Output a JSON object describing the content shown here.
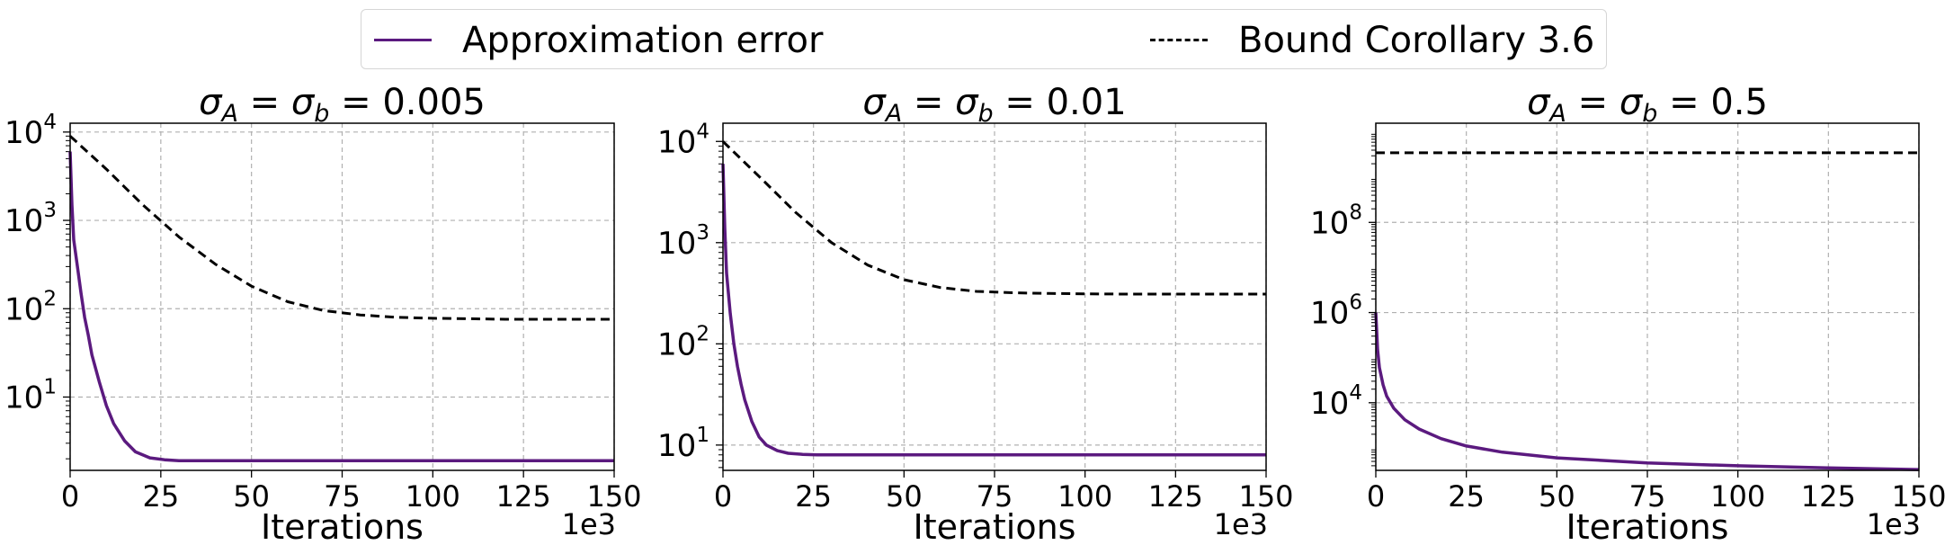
{
  "legend": {
    "error_label": "Approximation error",
    "bound_label": "Bound Corollary 3.6",
    "error_color": "#5b1a7f",
    "bound_color": "#000000",
    "bound_style": "dashed"
  },
  "chart_data": [
    {
      "type": "line",
      "title": "σ_A = σ_b = 0.005",
      "title_parts": {
        "s1": "σ",
        "sub1": "A",
        "eq1": " = ",
        "s2": "σ",
        "sub2": "b",
        "eq2": " = ",
        "value": "0.005"
      },
      "xlabel": "Iterations",
      "x_multiplier": "1e3",
      "xlim": [
        0,
        150
      ],
      "ylim_log10": [
        0.17,
        4.1
      ],
      "y_scale": "log",
      "grid": true,
      "xticks": [
        "0",
        "25",
        "50",
        "75",
        "100",
        "125",
        "150"
      ],
      "yticks": [
        {
          "base": "10",
          "exp": "1"
        },
        {
          "base": "10",
          "exp": "2"
        },
        {
          "base": "10",
          "exp": "3"
        },
        {
          "base": "10",
          "exp": "4"
        }
      ],
      "series": [
        {
          "name": "Approximation error",
          "style": "solid",
          "color": "#5b1a7f",
          "x": [
            0,
            0.5,
            1,
            2,
            3,
            4,
            5,
            6,
            8,
            10,
            12,
            15,
            18,
            22,
            26,
            30,
            40,
            60,
            80,
            100,
            120,
            150
          ],
          "y": [
            6000,
            1500,
            600,
            300,
            150,
            80,
            50,
            30,
            15,
            8,
            5,
            3.2,
            2.4,
            2.05,
            1.95,
            1.9,
            1.9,
            1.9,
            1.9,
            1.9,
            1.9,
            1.9
          ]
        },
        {
          "name": "Bound Corollary 3.6",
          "style": "dashed",
          "color": "#000000",
          "x": [
            0,
            10,
            20,
            30,
            40,
            50,
            60,
            70,
            80,
            90,
            100,
            110,
            120,
            130,
            140,
            150
          ],
          "y": [
            9000,
            3800,
            1500,
            650,
            320,
            180,
            120,
            95,
            85,
            80,
            78,
            77,
            76,
            76,
            76,
            76
          ]
        }
      ]
    },
    {
      "type": "line",
      "title": "σ_A = σ_b = 0.01",
      "title_parts": {
        "s1": "σ",
        "sub1": "A",
        "eq1": " = ",
        "s2": "σ",
        "sub2": "b",
        "eq2": " = ",
        "value": "0.01"
      },
      "xlabel": "Iterations",
      "x_multiplier": "1e3",
      "xlim": [
        0,
        150
      ],
      "ylim_log10": [
        0.75,
        4.18
      ],
      "y_scale": "log",
      "grid": true,
      "xticks": [
        "0",
        "25",
        "50",
        "75",
        "100",
        "125",
        "150"
      ],
      "yticks": [
        {
          "base": "10",
          "exp": "1"
        },
        {
          "base": "10",
          "exp": "2"
        },
        {
          "base": "10",
          "exp": "3"
        },
        {
          "base": "10",
          "exp": "4"
        }
      ],
      "series": [
        {
          "name": "Approximation error",
          "style": "solid",
          "color": "#5b1a7f",
          "x": [
            0,
            0.5,
            1,
            2,
            3,
            4,
            5,
            6,
            8,
            10,
            12,
            15,
            18,
            22,
            26,
            30,
            40,
            60,
            80,
            100,
            120,
            150
          ],
          "y": [
            6000,
            1400,
            500,
            200,
            100,
            60,
            40,
            28,
            17,
            12,
            10,
            8.8,
            8.3,
            8.1,
            8.0,
            8.0,
            8.0,
            8.0,
            8.0,
            8.0,
            8.0,
            8.0
          ]
        },
        {
          "name": "Bound Corollary 3.6",
          "style": "dashed",
          "color": "#000000",
          "x": [
            0,
            10,
            20,
            30,
            40,
            50,
            60,
            70,
            80,
            90,
            100,
            110,
            120,
            130,
            140,
            150
          ],
          "y": [
            10000,
            4500,
            2000,
            1000,
            600,
            430,
            360,
            330,
            320,
            315,
            312,
            310,
            310,
            310,
            310,
            310
          ]
        }
      ]
    },
    {
      "type": "line",
      "title": "σ_A = σ_b = 0.5",
      "title_parts": {
        "s1": "σ",
        "sub1": "A",
        "eq1": " = ",
        "s2": "σ",
        "sub2": "b",
        "eq2": " = ",
        "value": "0.5"
      },
      "xlabel": "Iterations",
      "x_multiplier": "1e3",
      "xlim": [
        0,
        150
      ],
      "ylim_log10": [
        2.5,
        10.2
      ],
      "y_scale": "log",
      "grid": true,
      "xticks": [
        "0",
        "25",
        "50",
        "75",
        "100",
        "125",
        "150"
      ],
      "yticks": [
        {
          "base": "10",
          "exp": "4"
        },
        {
          "base": "10",
          "exp": "6"
        },
        {
          "base": "10",
          "exp": "8"
        }
      ],
      "series": [
        {
          "name": "Approximation error",
          "style": "solid",
          "color": "#5b1a7f",
          "x": [
            0,
            0.5,
            1,
            2,
            3,
            5,
            8,
            12,
            18,
            25,
            35,
            50,
            75,
            100,
            125,
            150
          ],
          "y": [
            1000000,
            150000,
            60000,
            25000,
            14000,
            7500,
            4200,
            2600,
            1600,
            1100,
            800,
            600,
            460,
            400,
            360,
            330
          ]
        },
        {
          "name": "Bound Corollary 3.6",
          "style": "dashed",
          "color": "#000000",
          "x": [
            0,
            150
          ],
          "y": [
            3500000000,
            3500000000
          ]
        }
      ]
    }
  ]
}
